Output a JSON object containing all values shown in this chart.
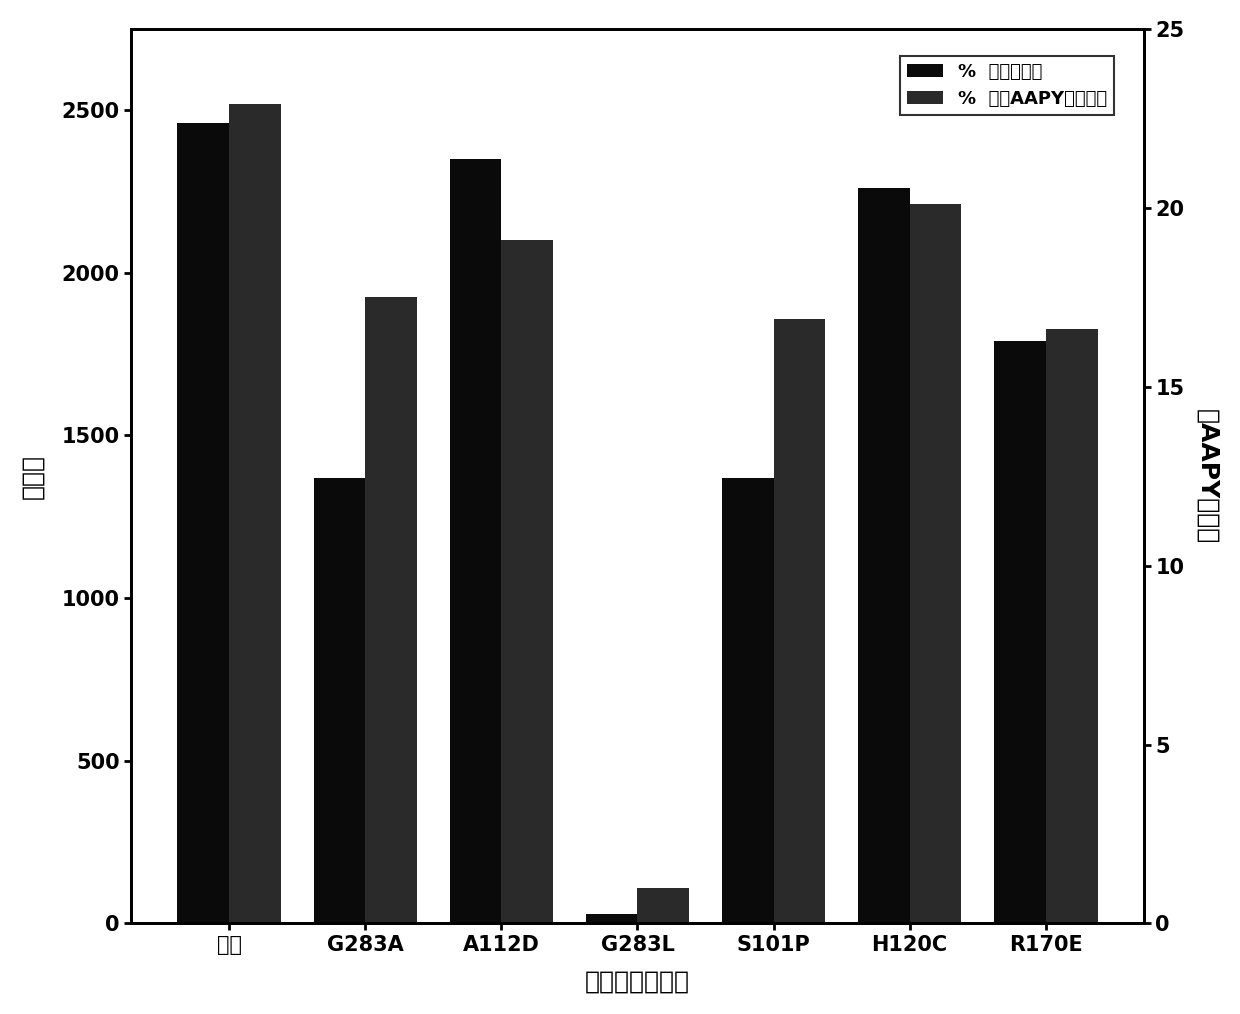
{
  "categories": [
    "原始",
    "G283A",
    "A112D",
    "G283L",
    "S101P",
    "H120C",
    "R170E"
  ],
  "series1_label": "%  （国标法）",
  "series2_label": "%  （以AAPY为底物）",
  "series1_values": [
    2460,
    1370,
    2350,
    30,
    1370,
    2260,
    1790
  ],
  "series2_values": [
    22.9,
    17.5,
    19.1,
    1.0,
    16.9,
    20.1,
    16.6
  ],
  "series1_color": "#0a0a0a",
  "series2_color": "#2a2a2a",
  "ylabel_left": "国标法",
  "ylabel_right": "以AAPY为底物",
  "xlabel": "不同蛋白酶样品",
  "ylim_left": [
    0,
    2750
  ],
  "ylim_right": [
    0,
    25
  ],
  "yticks_left": [
    0,
    500,
    1000,
    1500,
    2000,
    2500
  ],
  "yticks_right": [
    0,
    5,
    10,
    15,
    20,
    25
  ],
  "background_color": "#ffffff",
  "bar_width": 0.38,
  "label_fontsize": 18,
  "tick_fontsize": 15,
  "legend_fontsize": 13
}
